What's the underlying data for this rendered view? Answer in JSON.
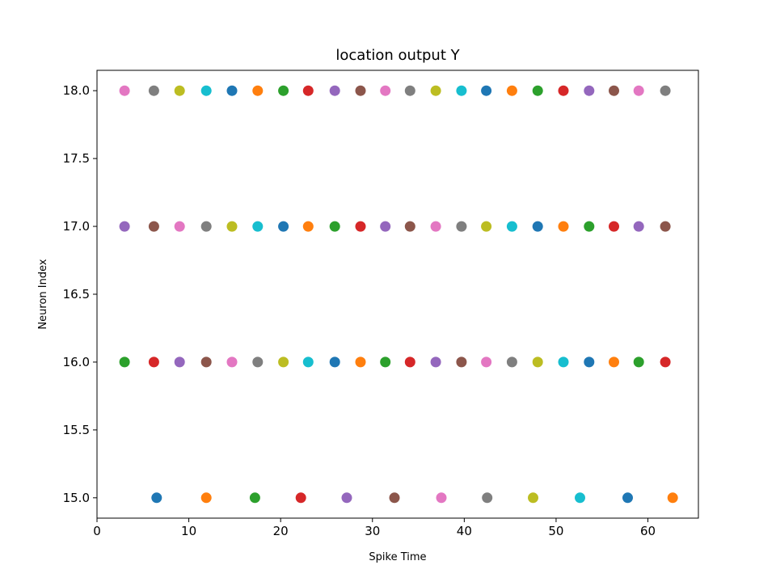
{
  "chart_data": {
    "type": "scatter",
    "title": "location output Y",
    "xlabel": "Spike Time",
    "ylabel": "Neuron Index",
    "xlim": [
      0,
      65.5
    ],
    "ylim": [
      14.85,
      18.15
    ],
    "xticks": [
      0,
      10,
      20,
      30,
      40,
      50,
      60
    ],
    "xtick_labels": [
      "0",
      "10",
      "20",
      "30",
      "40",
      "50",
      "60"
    ],
    "yticks": [
      15.0,
      15.5,
      16.0,
      16.5,
      17.0,
      17.5,
      18.0
    ],
    "ytick_labels": [
      "15.0",
      "15.5",
      "16.0",
      "16.5",
      "17.0",
      "17.5",
      "18.0"
    ],
    "grid": false,
    "legend": "none",
    "palette": [
      "#1f77b4",
      "#ff7f0e",
      "#2ca02c",
      "#d62728",
      "#9467bd",
      "#8c564b",
      "#e377c2",
      "#7f7f7f",
      "#bcbd22",
      "#17becf"
    ],
    "points": [
      {
        "x": 3.0,
        "y": 18,
        "color": "#e377c2"
      },
      {
        "x": 6.2,
        "y": 18,
        "color": "#7f7f7f"
      },
      {
        "x": 9.0,
        "y": 18,
        "color": "#bcbd22"
      },
      {
        "x": 11.9,
        "y": 18,
        "color": "#17becf"
      },
      {
        "x": 14.7,
        "y": 18,
        "color": "#1f77b4"
      },
      {
        "x": 17.5,
        "y": 18,
        "color": "#ff7f0e"
      },
      {
        "x": 20.3,
        "y": 18,
        "color": "#2ca02c"
      },
      {
        "x": 23.0,
        "y": 18,
        "color": "#d62728"
      },
      {
        "x": 25.9,
        "y": 18,
        "color": "#9467bd"
      },
      {
        "x": 28.7,
        "y": 18,
        "color": "#8c564b"
      },
      {
        "x": 31.4,
        "y": 18,
        "color": "#e377c2"
      },
      {
        "x": 34.1,
        "y": 18,
        "color": "#7f7f7f"
      },
      {
        "x": 36.9,
        "y": 18,
        "color": "#bcbd22"
      },
      {
        "x": 39.7,
        "y": 18,
        "color": "#17becf"
      },
      {
        "x": 42.4,
        "y": 18,
        "color": "#1f77b4"
      },
      {
        "x": 45.2,
        "y": 18,
        "color": "#ff7f0e"
      },
      {
        "x": 48.0,
        "y": 18,
        "color": "#2ca02c"
      },
      {
        "x": 50.8,
        "y": 18,
        "color": "#d62728"
      },
      {
        "x": 53.6,
        "y": 18,
        "color": "#9467bd"
      },
      {
        "x": 56.3,
        "y": 18,
        "color": "#8c564b"
      },
      {
        "x": 59.0,
        "y": 18,
        "color": "#e377c2"
      },
      {
        "x": 61.9,
        "y": 18,
        "color": "#7f7f7f"
      },
      {
        "x": 3.0,
        "y": 17,
        "color": "#9467bd"
      },
      {
        "x": 6.2,
        "y": 17,
        "color": "#8c564b"
      },
      {
        "x": 9.0,
        "y": 17,
        "color": "#e377c2"
      },
      {
        "x": 11.9,
        "y": 17,
        "color": "#7f7f7f"
      },
      {
        "x": 14.7,
        "y": 17,
        "color": "#bcbd22"
      },
      {
        "x": 17.5,
        "y": 17,
        "color": "#17becf"
      },
      {
        "x": 20.3,
        "y": 17,
        "color": "#1f77b4"
      },
      {
        "x": 23.0,
        "y": 17,
        "color": "#ff7f0e"
      },
      {
        "x": 25.9,
        "y": 17,
        "color": "#2ca02c"
      },
      {
        "x": 28.7,
        "y": 17,
        "color": "#d62728"
      },
      {
        "x": 31.4,
        "y": 17,
        "color": "#9467bd"
      },
      {
        "x": 34.1,
        "y": 17,
        "color": "#8c564b"
      },
      {
        "x": 36.9,
        "y": 17,
        "color": "#e377c2"
      },
      {
        "x": 39.7,
        "y": 17,
        "color": "#7f7f7f"
      },
      {
        "x": 42.4,
        "y": 17,
        "color": "#bcbd22"
      },
      {
        "x": 45.2,
        "y": 17,
        "color": "#17becf"
      },
      {
        "x": 48.0,
        "y": 17,
        "color": "#1f77b4"
      },
      {
        "x": 50.8,
        "y": 17,
        "color": "#ff7f0e"
      },
      {
        "x": 53.6,
        "y": 17,
        "color": "#2ca02c"
      },
      {
        "x": 56.3,
        "y": 17,
        "color": "#d62728"
      },
      {
        "x": 59.0,
        "y": 17,
        "color": "#9467bd"
      },
      {
        "x": 61.9,
        "y": 17,
        "color": "#8c564b"
      },
      {
        "x": 3.0,
        "y": 16,
        "color": "#2ca02c"
      },
      {
        "x": 6.2,
        "y": 16,
        "color": "#d62728"
      },
      {
        "x": 9.0,
        "y": 16,
        "color": "#9467bd"
      },
      {
        "x": 11.9,
        "y": 16,
        "color": "#8c564b"
      },
      {
        "x": 14.7,
        "y": 16,
        "color": "#e377c2"
      },
      {
        "x": 17.5,
        "y": 16,
        "color": "#7f7f7f"
      },
      {
        "x": 20.3,
        "y": 16,
        "color": "#bcbd22"
      },
      {
        "x": 23.0,
        "y": 16,
        "color": "#17becf"
      },
      {
        "x": 25.9,
        "y": 16,
        "color": "#1f77b4"
      },
      {
        "x": 28.7,
        "y": 16,
        "color": "#ff7f0e"
      },
      {
        "x": 31.4,
        "y": 16,
        "color": "#2ca02c"
      },
      {
        "x": 34.1,
        "y": 16,
        "color": "#d62728"
      },
      {
        "x": 36.9,
        "y": 16,
        "color": "#9467bd"
      },
      {
        "x": 39.7,
        "y": 16,
        "color": "#8c564b"
      },
      {
        "x": 42.4,
        "y": 16,
        "color": "#e377c2"
      },
      {
        "x": 45.2,
        "y": 16,
        "color": "#7f7f7f"
      },
      {
        "x": 48.0,
        "y": 16,
        "color": "#bcbd22"
      },
      {
        "x": 50.8,
        "y": 16,
        "color": "#17becf"
      },
      {
        "x": 53.6,
        "y": 16,
        "color": "#1f77b4"
      },
      {
        "x": 56.3,
        "y": 16,
        "color": "#ff7f0e"
      },
      {
        "x": 59.0,
        "y": 16,
        "color": "#2ca02c"
      },
      {
        "x": 61.9,
        "y": 16,
        "color": "#d62728"
      },
      {
        "x": 6.5,
        "y": 15,
        "color": "#1f77b4"
      },
      {
        "x": 11.9,
        "y": 15,
        "color": "#ff7f0e"
      },
      {
        "x": 17.2,
        "y": 15,
        "color": "#2ca02c"
      },
      {
        "x": 22.2,
        "y": 15,
        "color": "#d62728"
      },
      {
        "x": 27.2,
        "y": 15,
        "color": "#9467bd"
      },
      {
        "x": 32.4,
        "y": 15,
        "color": "#8c564b"
      },
      {
        "x": 37.5,
        "y": 15,
        "color": "#e377c2"
      },
      {
        "x": 42.5,
        "y": 15,
        "color": "#7f7f7f"
      },
      {
        "x": 47.5,
        "y": 15,
        "color": "#bcbd22"
      },
      {
        "x": 52.6,
        "y": 15,
        "color": "#17becf"
      },
      {
        "x": 57.8,
        "y": 15,
        "color": "#1f77b4"
      },
      {
        "x": 62.7,
        "y": 15,
        "color": "#ff7f0e"
      }
    ]
  }
}
